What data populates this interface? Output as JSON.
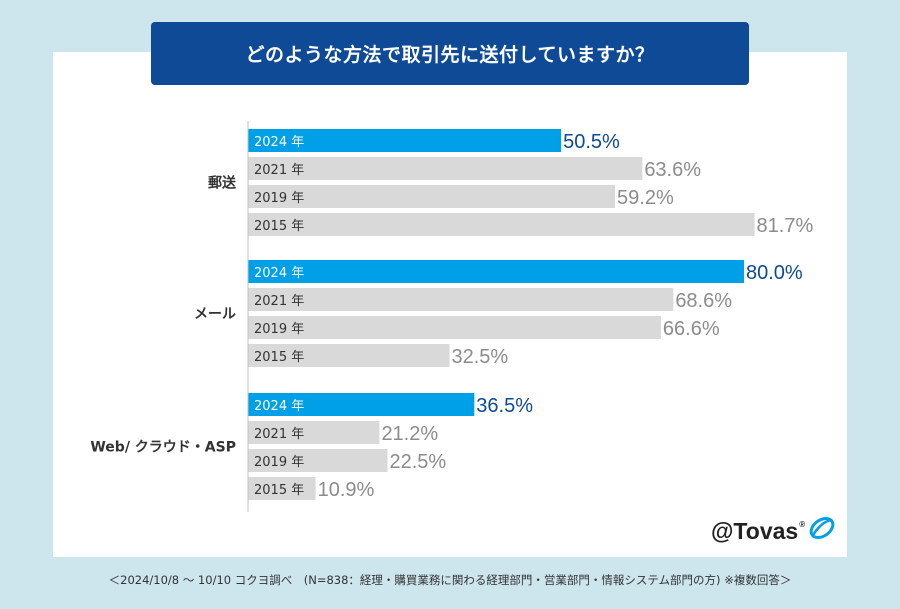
{
  "title": "どのような方法で取引先に送付していますか？",
  "footnote": "＜2024/10/8 ～ 10/10 コクヨ調べ　(N=838：経理・購買業務に関わる経理部門・営業部門・情報システム部門の方) ※複数回答＞",
  "logo": {
    "text": "@Tovas",
    "reg": "®",
    "icon": "tovas-swirl-icon"
  },
  "colors": {
    "highlight": "#00a0e9",
    "highlight_label": "#0e4a96",
    "other": "#d9d9d9",
    "other_label": "#8c8c8c",
    "axis": "#bfbfbf"
  },
  "chart_data": {
    "type": "bar",
    "orientation": "horizontal",
    "xlim": [
      0,
      100
    ],
    "unit": "%",
    "groups": [
      {
        "label": "郵送",
        "bars": [
          {
            "year": "2024 年",
            "value": 50.5,
            "label": "50.5%"
          },
          {
            "year": "2021 年",
            "value": 63.6,
            "label": "63.6%"
          },
          {
            "year": "2019 年",
            "value": 59.2,
            "label": "59.2%"
          },
          {
            "year": "2015 年",
            "value": 81.7,
            "label": "81.7%"
          }
        ]
      },
      {
        "label": "メール",
        "bars": [
          {
            "year": "2024 年",
            "value": 80.0,
            "label": "80.0%"
          },
          {
            "year": "2021 年",
            "value": 68.6,
            "label": "68.6%"
          },
          {
            "year": "2019 年",
            "value": 66.6,
            "label": "66.6%"
          },
          {
            "year": "2015 年",
            "value": 32.5,
            "label": "32.5%"
          }
        ]
      },
      {
        "label": "Web/ クラウド・ASP",
        "bars": [
          {
            "year": "2024 年",
            "value": 36.5,
            "label": "36.5%"
          },
          {
            "year": "2021 年",
            "value": 21.2,
            "label": "21.2%"
          },
          {
            "year": "2019 年",
            "value": 22.5,
            "label": "22.5%"
          },
          {
            "year": "2015 年",
            "value": 10.9,
            "label": "10.9%"
          }
        ]
      }
    ]
  }
}
